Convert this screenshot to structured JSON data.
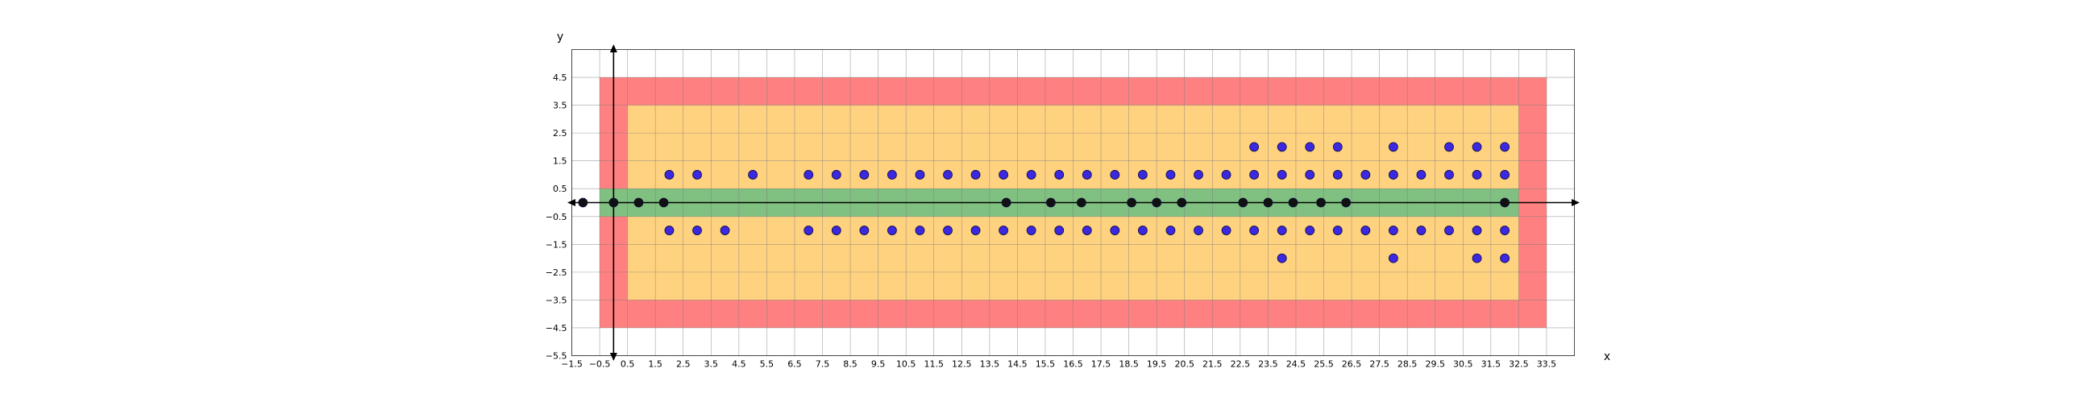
{
  "chart_data": {
    "type": "scatter",
    "title": "",
    "xlabel": "x",
    "ylabel": "y",
    "xlim": [
      -1.5,
      34.5
    ],
    "ylim": [
      -5.5,
      5.5
    ],
    "grid": true,
    "xticks": [
      -1.5,
      -0.5,
      0.5,
      1.5,
      2.5,
      3.5,
      4.5,
      5.5,
      6.5,
      7.5,
      8.5,
      9.5,
      10.5,
      11.5,
      12.5,
      13.5,
      14.5,
      15.5,
      16.5,
      17.5,
      18.5,
      19.5,
      20.5,
      21.5,
      22.5,
      23.5,
      24.5,
      25.5,
      26.5,
      27.5,
      28.5,
      29.5,
      30.5,
      31.5,
      32.5,
      33.5
    ],
    "yticks": [
      -5.5,
      -4.5,
      -3.5,
      -2.5,
      -1.5,
      -0.5,
      0.5,
      1.5,
      2.5,
      3.5,
      4.5
    ],
    "xtick_labels": [
      "−1.5",
      "−0.5",
      "0.5",
      "1.5",
      "2.5",
      "3.5",
      "4.5",
      "5.5",
      "6.5",
      "7.5",
      "8.5",
      "9.5",
      "10.5",
      "11.5",
      "12.5",
      "13.5",
      "14.5",
      "15.5",
      "16.5",
      "17.5",
      "18.5",
      "19.5",
      "20.5",
      "21.5",
      "22.5",
      "23.5",
      "24.5",
      "25.5",
      "26.5",
      "27.5",
      "28.5",
      "29.5",
      "30.5",
      "31.5",
      "32.5",
      "33.5"
    ],
    "ytick_labels": [
      "−5.5",
      "−4.5",
      "−3.5",
      "−2.5",
      "−1.5",
      "−0.5",
      "0.5",
      "1.5",
      "2.5",
      "3.5",
      "4.5"
    ],
    "regions": [
      {
        "color": "#ff8080",
        "x": [
          -0.5,
          33.5
        ],
        "y": [
          -4.5,
          4.5
        ]
      },
      {
        "color": "#ffd280",
        "x": [
          0.5,
          32.5
        ],
        "y": [
          -3.5,
          3.5
        ]
      },
      {
        "color": "#ffd280",
        "x": [
          1.5,
          32.5
        ],
        "y": [
          -3.5,
          3.5
        ]
      },
      {
        "color": "#80c080",
        "x": [
          -0.5,
          32.5
        ],
        "y": [
          -0.5,
          0.5
        ]
      }
    ],
    "colors": {
      "upper_lower_points": "#3c28e0",
      "axis_points": "#111111",
      "point_edge": "#0a0a40"
    },
    "series": [
      {
        "color": "#3c28e0",
        "points": [
          [
            2,
            1
          ],
          [
            3,
            1
          ],
          [
            5,
            1
          ],
          [
            7,
            1
          ],
          [
            8,
            1
          ],
          [
            9,
            1
          ],
          [
            10,
            1
          ],
          [
            11,
            1
          ],
          [
            12,
            1
          ],
          [
            13,
            1
          ],
          [
            14,
            1
          ],
          [
            15,
            1
          ],
          [
            16,
            1
          ],
          [
            17,
            1
          ],
          [
            18,
            1
          ],
          [
            19,
            1
          ],
          [
            20,
            1
          ],
          [
            21,
            1
          ],
          [
            22,
            1
          ],
          [
            23,
            1
          ],
          [
            24,
            1
          ],
          [
            25,
            1
          ],
          [
            26,
            1
          ],
          [
            27,
            1
          ],
          [
            28,
            1
          ],
          [
            29,
            1
          ],
          [
            30,
            1
          ],
          [
            31,
            1
          ],
          [
            32,
            1
          ],
          [
            23,
            2
          ],
          [
            24,
            2
          ],
          [
            25,
            2
          ],
          [
            26,
            2
          ],
          [
            28,
            2
          ],
          [
            30,
            2
          ],
          [
            31,
            2
          ],
          [
            32,
            2
          ],
          [
            2,
            -1
          ],
          [
            3,
            -1
          ],
          [
            4,
            -1
          ],
          [
            7,
            -1
          ],
          [
            8,
            -1
          ],
          [
            9,
            -1
          ],
          [
            10,
            -1
          ],
          [
            11,
            -1
          ],
          [
            12,
            -1
          ],
          [
            13,
            -1
          ],
          [
            14,
            -1
          ],
          [
            15,
            -1
          ],
          [
            16,
            -1
          ],
          [
            17,
            -1
          ],
          [
            18,
            -1
          ],
          [
            19,
            -1
          ],
          [
            20,
            -1
          ],
          [
            21,
            -1
          ],
          [
            22,
            -1
          ],
          [
            23,
            -1
          ],
          [
            24,
            -1
          ],
          [
            25,
            -1
          ],
          [
            26,
            -1
          ],
          [
            27,
            -1
          ],
          [
            28,
            -1
          ],
          [
            29,
            -1
          ],
          [
            30,
            -1
          ],
          [
            31,
            -1
          ],
          [
            32,
            -1
          ],
          [
            24,
            -2
          ],
          [
            28,
            -2
          ],
          [
            31,
            -2
          ],
          [
            32,
            -2
          ]
        ]
      },
      {
        "color": "#111111",
        "points": [
          [
            -1.1,
            0
          ],
          [
            0,
            0
          ],
          [
            0.9,
            0
          ],
          [
            1.8,
            0
          ],
          [
            14.1,
            0
          ],
          [
            15.7,
            0
          ],
          [
            16.8,
            0
          ],
          [
            18.6,
            0
          ],
          [
            19.5,
            0
          ],
          [
            20.4,
            0
          ],
          [
            22.6,
            0
          ],
          [
            23.5,
            0
          ],
          [
            24.4,
            0
          ],
          [
            25.4,
            0
          ],
          [
            26.3,
            0
          ],
          [
            32,
            0
          ]
        ]
      }
    ]
  }
}
